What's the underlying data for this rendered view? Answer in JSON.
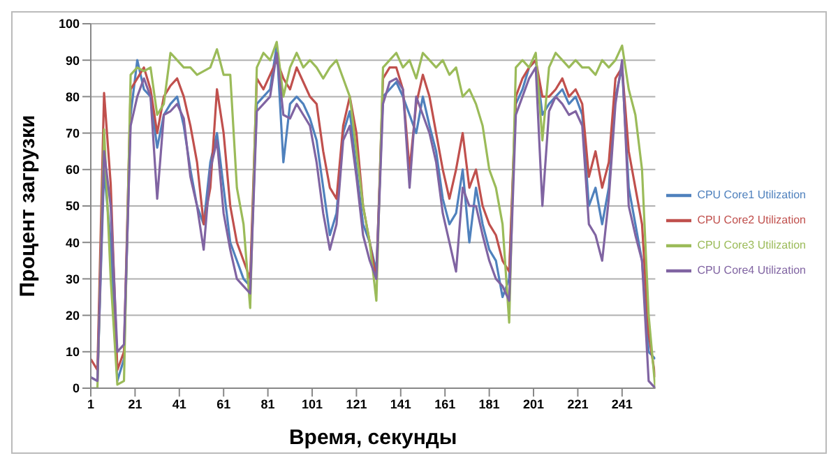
{
  "chart_data": {
    "type": "line",
    "xlabel": "Время, секунды",
    "ylabel": "Процент загрузки",
    "x": [
      1,
      4,
      7,
      10,
      13,
      16,
      19,
      22,
      25,
      28,
      31,
      34,
      37,
      40,
      43,
      46,
      49,
      52,
      55,
      58,
      61,
      64,
      67,
      70,
      73,
      76,
      79,
      82,
      85,
      88,
      91,
      94,
      97,
      100,
      103,
      106,
      109,
      112,
      115,
      118,
      121,
      124,
      127,
      130,
      133,
      136,
      139,
      142,
      145,
      148,
      151,
      154,
      157,
      160,
      163,
      166,
      169,
      172,
      175,
      178,
      181,
      184,
      187,
      190,
      193,
      196,
      199,
      202,
      205,
      208,
      211,
      214,
      217,
      220,
      223,
      226,
      229,
      232,
      235,
      238,
      241,
      244,
      247,
      250,
      253,
      256
    ],
    "xlim": [
      1,
      256
    ],
    "xticks": [
      1,
      21,
      41,
      61,
      81,
      101,
      121,
      141,
      161,
      181,
      201,
      221,
      241
    ],
    "ylim": [
      0,
      100
    ],
    "yticks": [
      0,
      10,
      20,
      30,
      40,
      50,
      60,
      70,
      80,
      90,
      100
    ],
    "grid": "y",
    "legend": "right",
    "marker": "none",
    "line_style": "solid",
    "series": [
      {
        "name": "CPU Core1 Utilization",
        "color": "#4f81bd",
        "values": [
          3,
          2,
          60,
          40,
          2,
          8,
          75,
          90,
          82,
          80,
          66,
          75,
          78,
          80,
          72,
          60,
          50,
          45,
          62,
          70,
          55,
          40,
          35,
          30,
          28,
          78,
          80,
          82,
          94,
          62,
          78,
          80,
          78,
          74,
          68,
          55,
          42,
          48,
          70,
          76,
          60,
          45,
          40,
          32,
          80,
          82,
          84,
          80,
          75,
          70,
          80,
          72,
          65,
          52,
          45,
          48,
          60,
          40,
          55,
          45,
          38,
          35,
          25,
          30,
          78,
          82,
          88,
          90,
          75,
          78,
          80,
          82,
          78,
          80,
          75,
          50,
          55,
          45,
          55,
          80,
          88,
          55,
          45,
          35,
          10,
          8
        ]
      },
      {
        "name": "CPU Core2 Utilization",
        "color": "#c0504d",
        "values": [
          8,
          5,
          81,
          56,
          5,
          10,
          82,
          85,
          88,
          82,
          70,
          80,
          83,
          85,
          80,
          72,
          62,
          45,
          55,
          82,
          70,
          50,
          40,
          35,
          30,
          85,
          82,
          86,
          90,
          85,
          82,
          88,
          84,
          80,
          78,
          65,
          55,
          52,
          72,
          80,
          70,
          50,
          40,
          30,
          85,
          88,
          88,
          82,
          60,
          78,
          86,
          80,
          70,
          60,
          52,
          60,
          70,
          55,
          60,
          50,
          45,
          42,
          35,
          32,
          80,
          85,
          88,
          90,
          80,
          80,
          82,
          85,
          80,
          82,
          78,
          58,
          65,
          55,
          62,
          85,
          88,
          65,
          55,
          45,
          15,
          3
        ]
      },
      {
        "name": "CPU Core3 Utilization",
        "color": "#9bbb59",
        "values": [
          0,
          0,
          71,
          30,
          1,
          2,
          86,
          88,
          87,
          88,
          75,
          78,
          92,
          90,
          88,
          88,
          86,
          87,
          88,
          93,
          86,
          86,
          55,
          45,
          22,
          88,
          92,
          90,
          95,
          80,
          88,
          92,
          88,
          90,
          88,
          85,
          88,
          90,
          85,
          80,
          65,
          50,
          40,
          24,
          88,
          90,
          92,
          88,
          90,
          85,
          92,
          90,
          88,
          90,
          86,
          88,
          80,
          82,
          78,
          72,
          60,
          55,
          45,
          18,
          88,
          90,
          88,
          92,
          68,
          88,
          92,
          90,
          88,
          90,
          88,
          88,
          86,
          90,
          88,
          90,
          94,
          82,
          75,
          60,
          20,
          0
        ]
      },
      {
        "name": "CPU Core4 Utilization",
        "color": "#8064a2",
        "values": [
          3,
          2,
          65,
          50,
          10,
          12,
          72,
          80,
          85,
          80,
          52,
          75,
          76,
          78,
          74,
          58,
          50,
          38,
          60,
          68,
          48,
          38,
          30,
          28,
          26,
          76,
          78,
          80,
          92,
          75,
          74,
          78,
          75,
          72,
          62,
          48,
          38,
          45,
          68,
          72,
          58,
          42,
          35,
          30,
          78,
          84,
          85,
          82,
          55,
          80,
          75,
          70,
          62,
          48,
          40,
          32,
          55,
          50,
          50,
          42,
          35,
          30,
          28,
          24,
          75,
          80,
          85,
          88,
          50,
          76,
          80,
          78,
          75,
          76,
          72,
          45,
          42,
          35,
          52,
          78,
          90,
          50,
          42,
          35,
          2,
          0
        ]
      }
    ]
  }
}
